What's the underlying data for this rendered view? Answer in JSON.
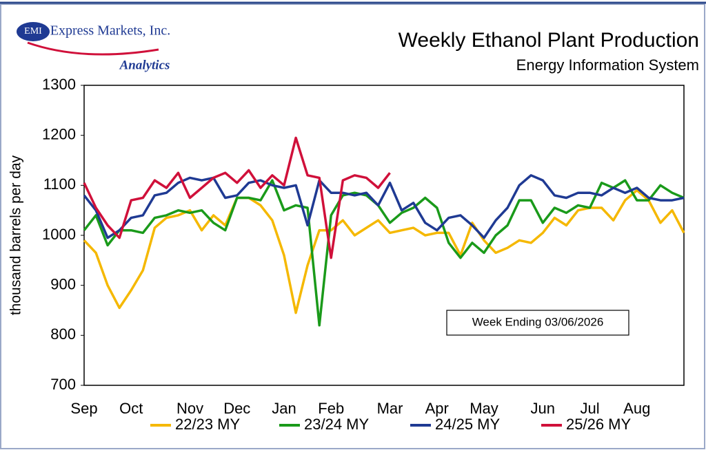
{
  "chart_data": {
    "type": "line",
    "logo": {
      "mark": "EMI",
      "name": "Express Markets, Inc.",
      "tagline": "Analytics"
    },
    "title": "Weekly Ethanol Plant Production",
    "subtitle": "Energy Information System",
    "y_label": "thousand barrels per day",
    "annotation": "Week Ending 03/06/2026",
    "categories": [
      "Sep",
      null,
      null,
      null,
      "Oct",
      null,
      null,
      null,
      null,
      "Nov",
      null,
      null,
      null,
      "Dec",
      null,
      null,
      null,
      "Jan",
      null,
      null,
      null,
      "Feb",
      null,
      null,
      null,
      null,
      "Mar",
      null,
      null,
      null,
      "Apr",
      null,
      null,
      null,
      "May",
      null,
      null,
      null,
      null,
      "Jun",
      null,
      null,
      null,
      "Jul",
      null,
      null,
      null,
      "Aug",
      null,
      null,
      null,
      null
    ],
    "ylim": [
      700,
      1300
    ],
    "yticks": [
      700,
      800,
      900,
      1000,
      1100,
      1200,
      1300
    ],
    "grid": false,
    "legend": "bottom",
    "series": [
      {
        "name": "22/23 MY",
        "color": "#f5b800",
        "values": [
          990,
          965,
          900,
          855,
          890,
          930,
          1015,
          1035,
          1040,
          1050,
          1010,
          1040,
          1020,
          1075,
          1075,
          1060,
          1030,
          960,
          845,
          940,
          1010,
          1010,
          1030,
          1000,
          1015,
          1030,
          1005,
          1010,
          1015,
          1000,
          1005,
          1005,
          960,
          1025,
          990,
          965,
          975,
          990,
          985,
          1005,
          1035,
          1020,
          1050,
          1055,
          1055,
          1030,
          1070,
          1090,
          1070,
          1025,
          1050,
          1005
        ]
      },
      {
        "name": "23/24 MY",
        "color": "#1a9a1a",
        "values": [
          1010,
          1040,
          980,
          1010,
          1010,
          1005,
          1035,
          1040,
          1050,
          1045,
          1050,
          1025,
          1010,
          1075,
          1075,
          1070,
          1110,
          1050,
          1060,
          1055,
          820,
          1040,
          1080,
          1085,
          1080,
          1060,
          1025,
          1045,
          1055,
          1075,
          1055,
          985,
          955,
          985,
          965,
          1000,
          1020,
          1070,
          1070,
          1025,
          1055,
          1045,
          1060,
          1055,
          1105,
          1095,
          1110,
          1070,
          1070,
          1100,
          1085,
          1075
        ]
      },
      {
        "name": "24/25 MY",
        "color": "#1f3a93",
        "values": [
          1080,
          1050,
          995,
          1010,
          1035,
          1040,
          1080,
          1085,
          1105,
          1115,
          1110,
          1115,
          1075,
          1080,
          1105,
          1110,
          1100,
          1095,
          1100,
          1020,
          1110,
          1085,
          1085,
          1080,
          1085,
          1060,
          1105,
          1050,
          1065,
          1025,
          1010,
          1035,
          1040,
          1020,
          995,
          1030,
          1055,
          1100,
          1120,
          1110,
          1080,
          1075,
          1085,
          1085,
          1080,
          1095,
          1085,
          1095,
          1075,
          1070,
          1070,
          1075
        ]
      },
      {
        "name": "25/26 MY",
        "color": "#d0103a",
        "values": [
          1105,
          1055,
          1020,
          995,
          1070,
          1075,
          1110,
          1095,
          1125,
          1075,
          1095,
          1115,
          1125,
          1105,
          1130,
          1095,
          1120,
          1100,
          1195,
          1120,
          1115,
          955,
          1110,
          1120,
          1115,
          1095,
          1125,
          null,
          null,
          null,
          null,
          null,
          null,
          null,
          null,
          null,
          null,
          null,
          null,
          null,
          null,
          null,
          null,
          null,
          null,
          null,
          null,
          null,
          null,
          null,
          null,
          null
        ]
      }
    ]
  }
}
